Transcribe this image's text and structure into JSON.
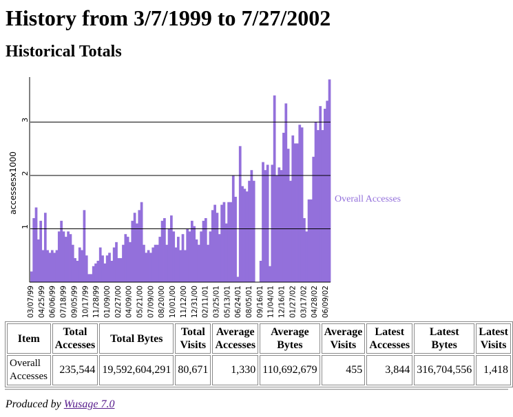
{
  "title": "History from 3/7/1999 to 7/27/2002",
  "subtitle": "Historical Totals",
  "chart_data": {
    "type": "area",
    "ylabel": "accessesx1000",
    "ylim": [
      0,
      3.844
    ],
    "yticks": [
      1,
      2,
      3
    ],
    "grid": true,
    "legend": [
      {
        "name": "Overall Accesses",
        "color": "#9370db",
        "placement": "right"
      }
    ],
    "x_labels": [
      "03/07/99",
      "04/25/99",
      "06/06/99",
      "07/18/99",
      "09/05/99",
      "10/17/99",
      "11/28/99",
      "01/09/00",
      "02/27/00",
      "04/09/00",
      "05/21/00",
      "07/09/00",
      "08/20/00",
      "10/01/00",
      "11/12/00",
      "12/31/00",
      "02/11/01",
      "03/25/01",
      "05/13/01",
      "06/24/01",
      "08/05/01",
      "09/16/01",
      "11/04/01",
      "12/16/01",
      "01/27/02",
      "03/17/02",
      "04/28/02",
      "06/09/02"
    ],
    "series": [
      {
        "name": "Overall Accesses",
        "values": [
          0.2,
          1.2,
          1.4,
          0.8,
          1.15,
          0.6,
          1.3,
          0.6,
          0.55,
          0.6,
          0.55,
          0.6,
          0.95,
          1.15,
          0.95,
          0.85,
          0.95,
          0.9,
          0.7,
          0.45,
          0.4,
          0.65,
          0.6,
          1.35,
          0.5,
          0.15,
          0.15,
          0.3,
          0.35,
          0.4,
          0.65,
          0.5,
          0.35,
          0.5,
          0.55,
          0.4,
          0.65,
          0.75,
          0.45,
          0.45,
          0.7,
          0.9,
          0.85,
          0.75,
          1.15,
          1.3,
          1.1,
          1.35,
          1.5,
          0.7,
          0.55,
          0.6,
          0.55,
          0.65,
          0.7,
          0.7,
          0.85,
          1.15,
          1.2,
          0.7,
          1.0,
          1.25,
          0.95,
          0.65,
          0.85,
          0.6,
          0.9,
          0.6,
          1.0,
          0.95,
          1.15,
          1.05,
          0.8,
          0.7,
          0.95,
          1.15,
          1.2,
          0.7,
          0.95,
          1.35,
          1.45,
          1.3,
          0.9,
          1.45,
          1.5,
          1.1,
          1.5,
          1.5,
          2.0,
          1.6,
          0.1,
          2.55,
          1.8,
          1.75,
          1.7,
          1.9,
          2.1,
          1.9,
          0,
          0,
          0.4,
          2.25,
          2.1,
          2.2,
          0.3,
          2.2,
          3.5,
          2.0,
          2.15,
          2.1,
          2.8,
          3.35,
          2.5,
          1.9,
          2.75,
          2.6,
          2.6,
          2.95,
          2.9,
          1.2,
          0.95,
          1.55,
          1.55,
          2.35,
          3.0,
          2.85,
          3.3,
          2.85,
          3.25,
          3.4,
          3.8
        ]
      }
    ]
  },
  "table": {
    "headers": [
      "Item",
      "Total Accesses",
      "Total Bytes",
      "Total Visits",
      "Average Accesses",
      "Average Bytes",
      "Average Visits",
      "Latest Accesses",
      "Latest Bytes",
      "Latest Visits"
    ],
    "rows": [
      [
        "Overall Accesses",
        "235,544",
        "19,592,604,291",
        "80,671",
        "1,330",
        "110,692,679",
        "455",
        "3,844",
        "316,704,556",
        "1,418"
      ]
    ]
  },
  "footer": {
    "prefix": "Produced by",
    "link": "Wusage 7.0"
  }
}
